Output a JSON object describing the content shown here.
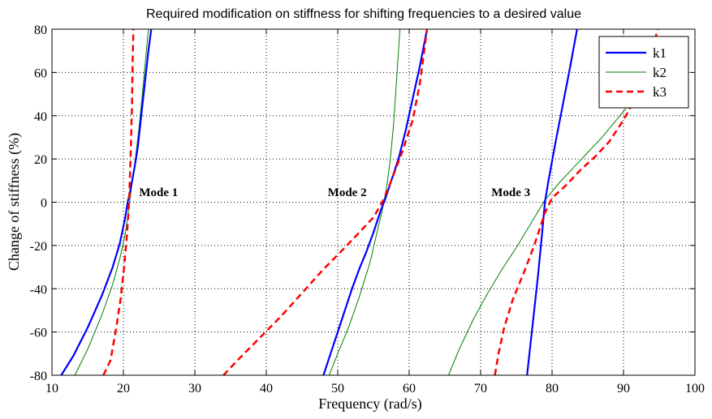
{
  "chart_data": {
    "type": "line",
    "title": "Required modification on  stiffness for shifting frequencies to a desired value",
    "xlabel": "Frequency (rad/s)",
    "ylabel": "Change of stiffness (%)",
    "xlim": [
      10,
      100
    ],
    "ylim": [
      -80,
      80
    ],
    "xticks": [
      10,
      20,
      30,
      40,
      50,
      60,
      70,
      80,
      90,
      100
    ],
    "yticks": [
      -80,
      -60,
      -40,
      -20,
      0,
      20,
      40,
      60,
      80
    ],
    "grid": true,
    "legend_position": "top-right",
    "series": [
      {
        "name": "k1",
        "color": "#0000ff",
        "style": "solid-thick",
        "segments": [
          [
            [
              11.3,
              -80
            ],
            [
              13,
              -71
            ],
            [
              15,
              -58
            ],
            [
              17,
              -43
            ],
            [
              18.5,
              -30
            ],
            [
              19.5,
              -19
            ],
            [
              20.2,
              -8
            ],
            [
              20.6,
              0
            ],
            [
              21,
              6
            ],
            [
              21.5,
              15
            ],
            [
              22,
              25
            ],
            [
              22.5,
              40
            ],
            [
              23,
              55
            ],
            [
              23.5,
              70
            ],
            [
              23.9,
              80
            ]
          ],
          [
            [
              48,
              -80
            ],
            [
              49,
              -70
            ],
            [
              50,
              -60
            ],
            [
              51,
              -50
            ],
            [
              52,
              -40
            ],
            [
              53,
              -31
            ],
            [
              54,
              -23
            ],
            [
              55,
              -14
            ],
            [
              56,
              -4
            ],
            [
              56.6,
              1
            ],
            [
              57.5,
              10
            ],
            [
              58.5,
              20
            ],
            [
              59.5,
              33
            ],
            [
              60.5,
              48
            ],
            [
              61.5,
              63
            ],
            [
              62.5,
              80
            ]
          ],
          [
            [
              76.5,
              -80
            ],
            [
              77,
              -65
            ],
            [
              77.5,
              -50
            ],
            [
              78,
              -35
            ],
            [
              78.5,
              -18
            ],
            [
              79,
              0
            ],
            [
              79.5,
              10
            ],
            [
              80.5,
              28
            ],
            [
              81.5,
              45
            ],
            [
              82.5,
              62
            ],
            [
              83.5,
              80
            ]
          ]
        ]
      },
      {
        "name": "k2",
        "color": "#008000",
        "style": "solid-thin",
        "segments": [
          [
            [
              13.2,
              -80
            ],
            [
              15,
              -68
            ],
            [
              17,
              -52
            ],
            [
              18.5,
              -38
            ],
            [
              19.5,
              -26
            ],
            [
              20.3,
              -14
            ],
            [
              20.7,
              -4
            ],
            [
              21.1,
              6
            ],
            [
              21.6,
              18
            ],
            [
              22.2,
              35
            ],
            [
              22.8,
              55
            ],
            [
              23.5,
              80
            ]
          ],
          [
            [
              48.8,
              -80
            ],
            [
              50,
              -70
            ],
            [
              51.5,
              -58
            ],
            [
              53,
              -44
            ],
            [
              54.5,
              -28
            ],
            [
              55.5,
              -14
            ],
            [
              56.2,
              -4
            ],
            [
              56.8,
              6
            ],
            [
              57.3,
              18
            ],
            [
              57.8,
              35
            ],
            [
              58.2,
              55
            ],
            [
              58.7,
              80
            ]
          ],
          [
            [
              65.5,
              -80
            ],
            [
              67,
              -68
            ],
            [
              69,
              -54
            ],
            [
              71,
              -42
            ],
            [
              73,
              -31
            ],
            [
              75,
              -21
            ],
            [
              77,
              -10
            ],
            [
              79,
              1
            ],
            [
              81,
              9
            ],
            [
              83,
              16
            ],
            [
              85,
              23
            ],
            [
              87,
              30
            ],
            [
              89,
              38
            ],
            [
              91,
              46
            ],
            [
              93,
              55
            ],
            [
              95,
              65
            ]
          ]
        ]
      },
      {
        "name": "k3",
        "color": "#ff0000",
        "style": "dashed",
        "segments": [
          [
            [
              17.2,
              -80
            ],
            [
              18.2,
              -73
            ],
            [
              19,
              -58
            ],
            [
              19.6,
              -45
            ],
            [
              20.1,
              -30
            ],
            [
              20.5,
              -15
            ],
            [
              20.8,
              0
            ],
            [
              21,
              20
            ],
            [
              21.2,
              45
            ],
            [
              21.3,
              65
            ],
            [
              21.4,
              80
            ]
          ],
          [
            [
              34,
              -80
            ],
            [
              36,
              -73
            ],
            [
              39,
              -63
            ],
            [
              42,
              -53
            ],
            [
              45,
              -42
            ],
            [
              48,
              -31
            ],
            [
              51,
              -21
            ],
            [
              53,
              -14
            ],
            [
              55,
              -7
            ],
            [
              56.4,
              1
            ],
            [
              57.5,
              10
            ],
            [
              59,
              23
            ],
            [
              60.5,
              38
            ],
            [
              61.5,
              55
            ],
            [
              62.5,
              80
            ]
          ],
          [
            [
              72,
              -80
            ],
            [
              72.5,
              -70
            ],
            [
              73.3,
              -58
            ],
            [
              74.5,
              -45
            ],
            [
              76,
              -33
            ],
            [
              77.5,
              -20
            ],
            [
              79,
              -5
            ],
            [
              80,
              2
            ],
            [
              82,
              8
            ],
            [
              84,
              15
            ],
            [
              86,
              21
            ],
            [
              88,
              28
            ],
            [
              90,
              38
            ],
            [
              92,
              50
            ],
            [
              93.5,
              64
            ],
            [
              94.8,
              80
            ]
          ]
        ]
      }
    ],
    "annotations": [
      {
        "text": "Mode 1",
        "x": 22.2,
        "y": 2
      },
      {
        "text": "Mode 2",
        "x": 48.6,
        "y": 2
      },
      {
        "text": "Mode 3",
        "x": 71.5,
        "y": 2
      }
    ]
  }
}
